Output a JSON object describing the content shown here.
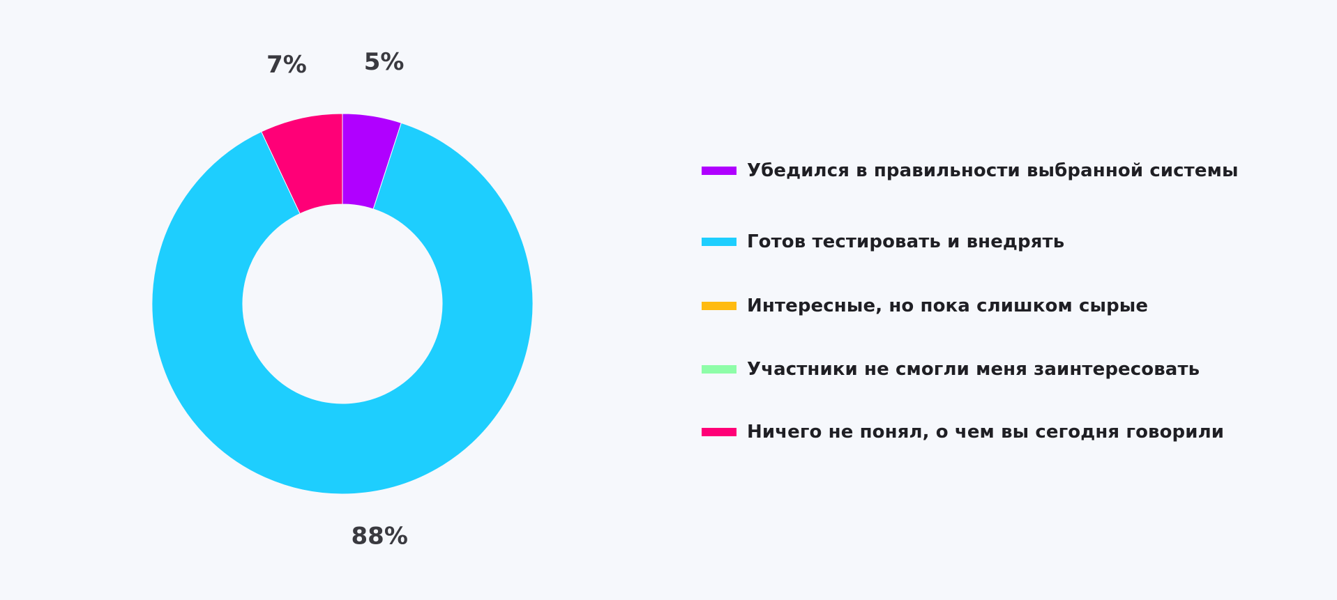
{
  "chart_data": {
    "type": "pie",
    "variant": "donut",
    "title": "",
    "slices": [
      {
        "label": "Убедился в правильности выбранной системы",
        "value": 5,
        "display": "5%",
        "color": "#b000ff"
      },
      {
        "label": "Готов тестировать и внедрять",
        "value": 88,
        "display": "88%",
        "color": "#1ecefe"
      },
      {
        "label": "Интересные, но пока слишком сырые",
        "value": 0,
        "display": "",
        "color": "#ffbb11"
      },
      {
        "label": "Участники не смогли меня заинтересовать",
        "value": 0,
        "display": "",
        "color": "#8efda8"
      },
      {
        "label": "Ничего не понял, о чем вы сегодня говорили",
        "value": 7,
        "display": "7%",
        "color": "#ff0077"
      }
    ],
    "legend": {
      "position": "right"
    },
    "start_angle": "top",
    "direction": "clockwise"
  }
}
